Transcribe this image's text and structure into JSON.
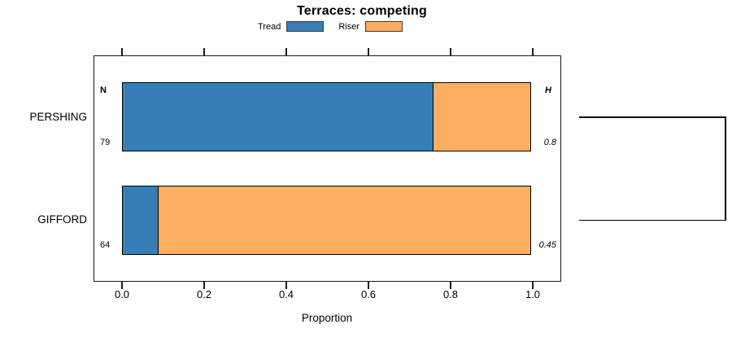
{
  "title": "Terraces: competing",
  "legend": {
    "items": [
      {
        "label": "Tread",
        "color": "#377EB8"
      },
      {
        "label": "Riser",
        "color": "#FDAE61"
      }
    ]
  },
  "axis": {
    "label": "Proportion",
    "ticks": [
      "0.0",
      "0.2",
      "0.4",
      "0.6",
      "0.8",
      "1.0"
    ]
  },
  "column_headers": {
    "n": "N",
    "h": "H"
  },
  "rows": [
    {
      "label": "PERSHING",
      "n": "79",
      "h": "0.8"
    },
    {
      "label": "GIFFORD",
      "n": "64",
      "h": "0.45"
    }
  ],
  "chart_data": {
    "type": "bar",
    "orientation": "horizontal",
    "stacked": true,
    "title": "Terraces: competing",
    "xlabel": "Proportion",
    "xlim": [
      0,
      1
    ],
    "x_ticks": [
      0.0,
      0.2,
      0.4,
      0.6,
      0.8,
      1.0
    ],
    "grid": false,
    "legend_position": "top-center",
    "categories": [
      "PERSHING",
      "GIFFORD"
    ],
    "series": [
      {
        "name": "Tread",
        "color": "#377EB8",
        "values": [
          0.76,
          0.09
        ]
      },
      {
        "name": "Riser",
        "color": "#FDAE61",
        "values": [
          0.24,
          0.91
        ]
      }
    ],
    "annotations": {
      "N": [
        79,
        64
      ],
      "H": [
        0.8,
        0.45
      ]
    },
    "dendrogram": {
      "joined_rows": [
        "PERSHING",
        "GIFFORD"
      ]
    }
  }
}
